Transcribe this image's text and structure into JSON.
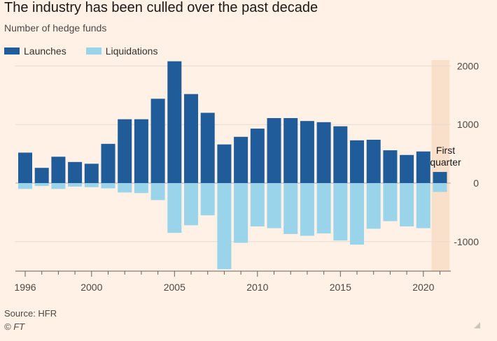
{
  "header": {
    "title": "The industry has been culled over the past decade",
    "subtitle": "Number of hedge funds"
  },
  "legend": {
    "items": [
      {
        "label": "Launches",
        "color": "#1f5c99"
      },
      {
        "label": "Liquidations",
        "color": "#99d4ea"
      }
    ]
  },
  "annotation": {
    "line1": "First",
    "line2": "quarter"
  },
  "footer": {
    "source": "Source: HFR",
    "copyright": "© FT"
  },
  "chart_data": {
    "type": "bar",
    "stacked_diverging": true,
    "categories": [
      "1996",
      "1997",
      "1998",
      "1999",
      "2000",
      "2001",
      "2002",
      "2003",
      "2004",
      "2005",
      "2006",
      "2007",
      "2008",
      "2009",
      "2010",
      "2011",
      "2012",
      "2013",
      "2014",
      "2015",
      "2016",
      "2017",
      "2018",
      "2019",
      "2020",
      "2021"
    ],
    "series": [
      {
        "name": "Launches",
        "color": "#1f5c99",
        "values": [
          520,
          260,
          450,
          360,
          330,
          670,
          1090,
          1090,
          1440,
          2080,
          1520,
          1200,
          660,
          790,
          930,
          1110,
          1110,
          1060,
          1040,
          970,
          730,
          740,
          560,
          480,
          540,
          190
        ]
      },
      {
        "name": "Liquidations",
        "color": "#99d4ea",
        "values": [
          -100,
          -50,
          -100,
          -60,
          -70,
          -90,
          -160,
          -170,
          -290,
          -850,
          -720,
          -550,
          -1470,
          -1020,
          -740,
          -770,
          -870,
          -900,
          -860,
          -980,
          -1050,
          -780,
          -650,
          -740,
          -770,
          -150
        ]
      }
    ],
    "xticks": [
      "1996",
      "2000",
      "2005",
      "2010",
      "2015",
      "2020"
    ],
    "yticks": [
      2000,
      1000,
      0,
      -1000
    ],
    "ytick_labels": [
      "2000",
      "1000",
      "0",
      "-1000"
    ],
    "ylim": [
      -1500,
      2100
    ],
    "highlight": {
      "category": "2021",
      "label": "First quarter"
    },
    "grid": true,
    "legend_position": "top-left"
  }
}
